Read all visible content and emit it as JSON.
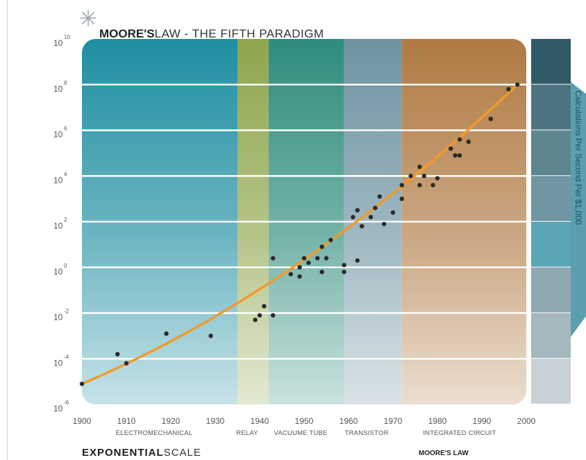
{
  "title": {
    "bold": "MOORE'S",
    "light": "LAW - THE FIFTH PARADIGM"
  },
  "footer": {
    "left_bold": "EXPONENTIAL",
    "left_light": "SCALE",
    "right": "MOORE'S LAW"
  },
  "side_label": "Calculations Per Second Per $1,000",
  "colors": {
    "curve": "#f39a2a",
    "point": "#2a2a2a",
    "era_electromechanical": "#1f8fa2",
    "era_relay": "#8ea64c",
    "era_vacuum_tube": "#2e8c7c",
    "era_transistor": "#6d93a1",
    "era_integrated_circuit": "#b07a42"
  },
  "chart_data": {
    "type": "scatter",
    "title": "MOORE'S LAW - THE FIFTH PARADIGM",
    "xlabel": "",
    "ylabel": "Calculations Per Second Per $1,000",
    "yscale": "log",
    "xlim": [
      1900,
      2000
    ],
    "ylim_exponent": [
      -6,
      10
    ],
    "x_ticks": [
      "1900",
      "1910",
      "1920",
      "1930",
      "1940",
      "1950",
      "1960",
      "1970",
      "1980",
      "1990",
      "2000"
    ],
    "y_ticks": [
      {
        "base": "10",
        "exp": "10",
        "value": 10
      },
      {
        "base": "10",
        "exp": "8",
        "value": 8
      },
      {
        "base": "10",
        "exp": "6",
        "value": 6
      },
      {
        "base": "10",
        "exp": "4",
        "value": 4
      },
      {
        "base": "10",
        "exp": "2",
        "value": 2
      },
      {
        "base": "10",
        "exp": "0",
        "value": 0
      },
      {
        "base": "10",
        "exp": "-2",
        "value": -2
      },
      {
        "base": "10",
        "exp": "-4",
        "value": -4
      },
      {
        "base": "10",
        "exp": "-6",
        "value": -6
      }
    ],
    "eras": [
      {
        "label": "ELECTROMECHANICAL",
        "start": 1900,
        "end": 1935,
        "color": "#1f8fa2"
      },
      {
        "label": "RELAY",
        "start": 1935,
        "end": 1942,
        "color": "#8ea64c"
      },
      {
        "label": "VACUUME TUBE",
        "start": 1942,
        "end": 1959,
        "color": "#2e8c7c"
      },
      {
        "label": "TRANSISTOR",
        "start": 1959,
        "end": 1972,
        "color": "#6d93a1"
      },
      {
        "label": "INTEGRATED CIRCUIT",
        "start": 1972,
        "end": 2000,
        "color": "#b07a42"
      }
    ],
    "series": [
      {
        "points": [
          [
            1900,
            -5.1
          ],
          [
            1908,
            -3.8
          ],
          [
            1910,
            -4.2
          ],
          [
            1919,
            -2.9
          ],
          [
            1929,
            -3.0
          ],
          [
            1939,
            -2.3
          ],
          [
            1940,
            -2.1
          ],
          [
            1941,
            -1.7
          ],
          [
            1943,
            -2.1
          ],
          [
            1943,
            0.4
          ],
          [
            1947,
            -0.3
          ],
          [
            1949,
            -0.4
          ],
          [
            1949,
            0.0
          ],
          [
            1950,
            0.4
          ],
          [
            1951,
            0.2
          ],
          [
            1953,
            0.4
          ],
          [
            1954,
            0.9
          ],
          [
            1954,
            -0.2
          ],
          [
            1955,
            0.4
          ],
          [
            1956,
            1.2
          ],
          [
            1959,
            0.1
          ],
          [
            1959,
            -0.2
          ],
          [
            1961,
            2.2
          ],
          [
            1962,
            0.3
          ],
          [
            1962,
            2.5
          ],
          [
            1963,
            1.8
          ],
          [
            1965,
            2.2
          ],
          [
            1966,
            2.6
          ],
          [
            1967,
            3.1
          ],
          [
            1968,
            1.9
          ],
          [
            1970,
            2.4
          ],
          [
            1972,
            3.0
          ],
          [
            1972,
            3.6
          ],
          [
            1974,
            4.0
          ],
          [
            1976,
            3.6
          ],
          [
            1976,
            4.4
          ],
          [
            1977,
            4.0
          ],
          [
            1979,
            3.6
          ],
          [
            1980,
            3.9
          ],
          [
            1983,
            5.2
          ],
          [
            1984,
            4.9
          ],
          [
            1985,
            4.9
          ],
          [
            1985,
            5.6
          ],
          [
            1987,
            5.5
          ],
          [
            1992,
            6.5
          ],
          [
            1996,
            7.8
          ],
          [
            1998,
            8.0
          ]
        ]
      }
    ],
    "trend": {
      "type": "exponential-fit",
      "from": [
        1900,
        -5.1
      ],
      "to": [
        1998,
        8.0
      ]
    },
    "grid": true,
    "legend": "none"
  }
}
